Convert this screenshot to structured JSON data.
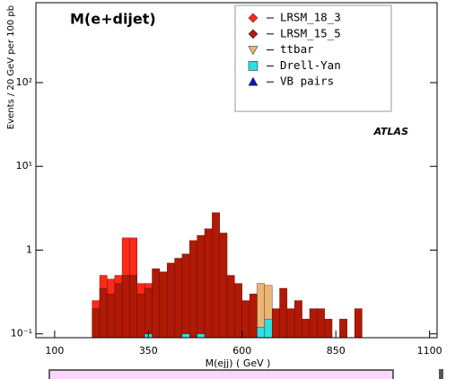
{
  "chart_data": {
    "type": "histogram",
    "title": "M(e+dijet)",
    "annotation": "ATLAS",
    "x_label": "M(ejj) ( GeV )",
    "y_label": "Events / 20 GeV per 100 pb",
    "log_y": true,
    "xlim": [
      50,
      1120
    ],
    "ylim": [
      0.09,
      900
    ],
    "xticks": [
      100,
      350,
      600,
      850,
      1100
    ],
    "yticks": [
      {
        "value": 0.1,
        "label": "10⁻¹"
      },
      1,
      {
        "value": 10,
        "label": "10¹"
      },
      {
        "value": 100,
        "label": "10²"
      }
    ],
    "bins": [
      200,
      220,
      240,
      260,
      280,
      300,
      320,
      340,
      360,
      380,
      400,
      420,
      440,
      460,
      480,
      500,
      520,
      540,
      560,
      580,
      600,
      620,
      640,
      660,
      680,
      700,
      720,
      740,
      760,
      780,
      800,
      820,
      840,
      860,
      880,
      900,
      920,
      940,
      960,
      980,
      1000,
      1020,
      1040,
      1060,
      1080,
      1100
    ],
    "series": [
      {
        "name": "LRSM_18_3",
        "color": "#ff2a1a",
        "marker": "diamond",
        "values": [
          0.25,
          0.5,
          0.45,
          0.5,
          1.4,
          1.4,
          0.4,
          0.4,
          null,
          null,
          null,
          null,
          null,
          null,
          null,
          null,
          null,
          null,
          null,
          null,
          null,
          null,
          null,
          null,
          null,
          null,
          null,
          null,
          null,
          null,
          null,
          null,
          null,
          null,
          null,
          null,
          null,
          null,
          null,
          null,
          null,
          null,
          null,
          null,
          null
        ]
      },
      {
        "name": "LRSM_15_5",
        "color": "#b01a06",
        "marker": "diamond",
        "values": [
          0.2,
          0.35,
          0.3,
          0.4,
          0.5,
          0.5,
          0.3,
          0.35,
          0.6,
          0.55,
          0.7,
          0.8,
          0.9,
          1.3,
          1.5,
          1.8,
          2.8,
          1.6,
          0.5,
          0.4,
          0.25,
          0.3,
          0.2,
          0.15,
          0.2,
          0.35,
          0.2,
          0.25,
          0.15,
          0.2,
          0.2,
          0.15,
          null,
          0.15,
          null,
          0.2,
          null,
          null,
          null,
          null,
          null,
          null,
          null,
          null,
          null
        ]
      },
      {
        "name": "ttbar",
        "color": "#e8b778",
        "marker": "triangle-down",
        "values": [
          null,
          null,
          null,
          null,
          null,
          null,
          null,
          null,
          null,
          null,
          null,
          null,
          null,
          null,
          null,
          null,
          null,
          null,
          null,
          null,
          null,
          null,
          0.4,
          0.38,
          null,
          null,
          null,
          null,
          null,
          null,
          null,
          null,
          null,
          null,
          null,
          null,
          null,
          null,
          null,
          null,
          null,
          null,
          null,
          null,
          null
        ]
      },
      {
        "name": "Drell-Yan",
        "color": "#2ee0e0",
        "marker": "square",
        "values": [
          null,
          null,
          null,
          null,
          null,
          null,
          null,
          0.1,
          null,
          null,
          null,
          null,
          0.1,
          null,
          0.1,
          null,
          null,
          null,
          null,
          null,
          null,
          null,
          0.12,
          0.15,
          null,
          null,
          null,
          null,
          null,
          null,
          null,
          null,
          null,
          null,
          null,
          null,
          null,
          null,
          null,
          null,
          null,
          null,
          null,
          null,
          null
        ]
      },
      {
        "name": "VB pairs",
        "color": "#1010c0",
        "marker": "triangle-up",
        "values": [
          null,
          null,
          null,
          null,
          null,
          null,
          null,
          null,
          null,
          null,
          null,
          null,
          null,
          null,
          null,
          null,
          null,
          null,
          null,
          null,
          null,
          null,
          null,
          null,
          null,
          null,
          null,
          null,
          null,
          null,
          null,
          null,
          null,
          null,
          null,
          null,
          null,
          null,
          null,
          null,
          null,
          null,
          null,
          null,
          null
        ]
      }
    ]
  }
}
